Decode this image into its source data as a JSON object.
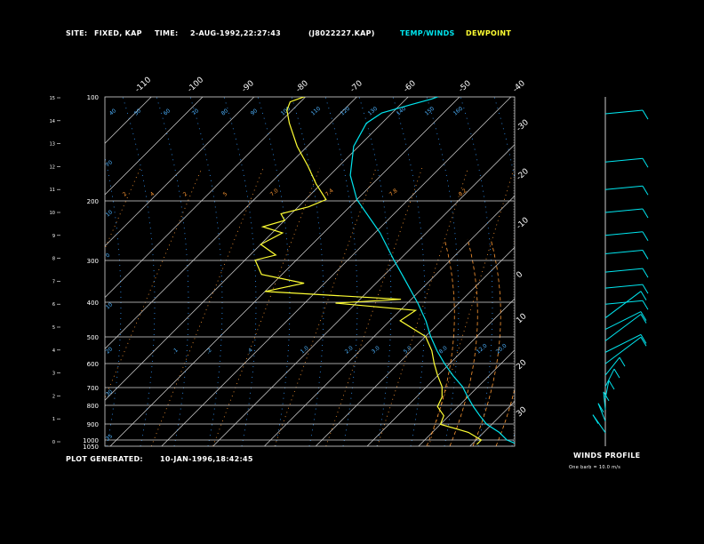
{
  "header": {
    "site_label": "SITE:",
    "site_value": "FIXED, KAP",
    "time_label": "TIME:",
    "time_value": "2-AUG-1992,22:27:43",
    "file_name": "(J8022227.KAP)",
    "legend_temp": "TEMP/WINDS",
    "legend_dew": "DEWPOINT"
  },
  "footer": {
    "generated_label": "PLOT GENERATED:",
    "generated_value": "10-JAN-1996,18:42:45",
    "winds_profile_label": "WINDS PROFILE",
    "barb_note": "One barb = 10.0 m/s"
  },
  "colors": {
    "background": "#000000",
    "grid": "#d8d8d8",
    "temp": "#00e5ee",
    "dewpoint": "#ffff33",
    "mixing_ratio": "#ff9933",
    "moist_adiabat": "#3399ff"
  },
  "chart_data": {
    "type": "line",
    "title": "",
    "pressure_levels": [
      "1050",
      "1000",
      "900",
      "800",
      "700",
      "600",
      "500",
      "400",
      "300",
      "200",
      "100"
    ],
    "height_ticks": [
      "0",
      "1",
      "2",
      "3",
      "4",
      "5",
      "6",
      "7",
      "8",
      "9",
      "10",
      "11",
      "12",
      "13",
      "14",
      "15"
    ],
    "temperature_ticks_top": [
      "-110",
      "-100",
      "-90",
      "-80",
      "-70",
      "-60",
      "-50",
      "-40"
    ],
    "temperature_ticks_right": [
      "-30",
      "-20",
      "-10",
      "0",
      "10",
      "20",
      "30"
    ],
    "mixing_ratio_labels_upper": [
      "2",
      "4",
      "2",
      "5",
      "7.0",
      "7.4",
      "7.8",
      "8.2"
    ],
    "mixing_ratio_labels_lower": [
      ".1",
      ".2",
      ".4",
      "1.0",
      "2.0",
      "3.0",
      "5.0",
      "8.0",
      "12.0",
      "20.0"
    ],
    "moist_adiabat_labels_top": [
      "40",
      "50",
      "60",
      "70",
      "80",
      "90",
      "100",
      "110",
      "120",
      "130",
      "140",
      "150",
      "160"
    ],
    "moist_adiabat_labels_left": [
      "70",
      "10",
      "0",
      "10",
      "20",
      "30",
      "35"
    ],
    "ylim_hpa": [
      1050,
      100
    ],
    "series": [
      {
        "name": "TEMP/WINDS",
        "color": "#00e5ee",
        "pressure": [
          1030,
          1000,
          950,
          900,
          850,
          800,
          750,
          700,
          650,
          600,
          550,
          500,
          450,
          400,
          350,
          300,
          250,
          200,
          170,
          140,
          120,
          112,
          106,
          102,
          100
        ],
        "temp": [
          29,
          26,
          23,
          19,
          16,
          13,
          10,
          7,
          3,
          -1,
          -5,
          -9,
          -13,
          -18,
          -24,
          -31,
          -39,
          -50,
          -56,
          -61,
          -63,
          -62,
          -58,
          -55,
          -54
        ]
      },
      {
        "name": "DEWPOINT",
        "color": "#ffff33",
        "pressure": [
          1030,
          1000,
          950,
          900,
          850,
          800,
          750,
          700,
          650,
          600,
          550,
          500,
          450,
          420,
          400,
          390,
          370,
          350,
          330,
          300,
          290,
          270,
          250,
          240,
          230,
          220,
          210,
          200,
          180,
          160,
          140,
          120,
          110,
          104,
          100
        ],
        "temp": [
          21,
          21,
          17,
          10,
          9,
          6,
          5,
          3,
          0,
          -3,
          -6,
          -10,
          -18,
          -17,
          -34,
          -22,
          -50,
          -44,
          -54,
          -58,
          -55,
          -60,
          -58,
          -63,
          -60,
          -62,
          -58,
          -56,
          -61,
          -66,
          -72,
          -78,
          -81,
          -82,
          -80
        ]
      }
    ],
    "wind_profile": {
      "barb_speed_ms": 10.0,
      "levels_km": [
        0.4,
        0.9,
        1.4,
        1.9,
        2.4,
        2.9,
        3.4,
        3.9,
        4.4,
        4.9,
        5.4,
        6.0,
        6.7,
        7.4,
        8.2,
        9.0,
        10.0,
        11.0,
        12.2,
        14.3
      ]
    }
  }
}
